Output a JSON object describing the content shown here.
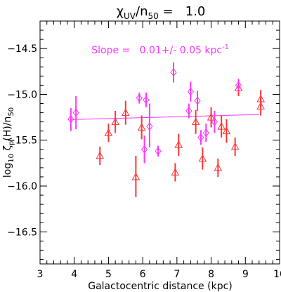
{
  "chart_data": {
    "type": "scatter",
    "title_main": "χ",
    "title_sub": "UV",
    "title_slash": "/n",
    "title_sub2": "50",
    "title_eq": " =   1.0",
    "xlabel": "Galactocentric distance (kpc)",
    "ylabel_pre": "log",
    "ylabel_sub1": "10",
    "ylabel_zeta": " ζ",
    "ylabel_sub2": "p",
    "ylabel_mid": "(H)/n",
    "ylabel_sub3": "50",
    "annotation": "Slope =   0.01+/- 0.05 kpc",
    "annotation_sup": "-1",
    "xlim": [
      3,
      10
    ],
    "ylim": [
      -16.85,
      -14.2
    ],
    "xticks": [
      3,
      4,
      5,
      6,
      7,
      8,
      9,
      10
    ],
    "xtick_labels": [
      "3",
      "4",
      "5",
      "6",
      "7",
      "8",
      "9",
      "10"
    ],
    "yticks": [
      -14.5,
      -15.0,
      -15.5,
      -16.0,
      -16.5
    ],
    "ytick_labels": [
      "−14.5",
      "−15.0",
      "−15.5",
      "−16.0",
      "−16.5"
    ],
    "colors": {
      "series_a": "#ff3333",
      "series_b": "#ff33ff",
      "fit": "#ff33ff",
      "axes": "#000000"
    },
    "fit_line": {
      "x": [
        3.9,
        9.4
      ],
      "y": [
        -15.275,
        -15.22
      ]
    },
    "series": [
      {
        "marker": "triangle",
        "color": "#ff3333",
        "points": [
          {
            "x": 4.75,
            "y": -15.67,
            "ylo": -15.77,
            "yhi": -15.57
          },
          {
            "x": 5.0,
            "y": -15.42,
            "ylo": -15.52,
            "yhi": -15.32
          },
          {
            "x": 5.2,
            "y": -15.3,
            "ylo": -15.42,
            "yhi": -15.18
          },
          {
            "x": 5.5,
            "y": -15.2,
            "ylo": -15.33,
            "yhi": -15.07
          },
          {
            "x": 5.8,
            "y": -15.9,
            "ylo": -16.12,
            "yhi": -15.67
          },
          {
            "x": 5.97,
            "y": -15.36,
            "ylo": -15.49,
            "yhi": -15.23
          },
          {
            "x": 6.95,
            "y": -15.85,
            "ylo": -15.95,
            "yhi": -15.75
          },
          {
            "x": 7.05,
            "y": -15.55,
            "ylo": -15.67,
            "yhi": -15.43
          },
          {
            "x": 7.55,
            "y": -15.3,
            "ylo": -15.43,
            "yhi": -15.17
          },
          {
            "x": 7.75,
            "y": -15.7,
            "ylo": -15.82,
            "yhi": -15.58
          },
          {
            "x": 8.0,
            "y": -15.25,
            "ylo": -15.36,
            "yhi": -15.14
          },
          {
            "x": 8.2,
            "y": -15.8,
            "ylo": -15.9,
            "yhi": -15.7
          },
          {
            "x": 8.3,
            "y": -15.35,
            "ylo": -15.47,
            "yhi": -15.23
          },
          {
            "x": 8.45,
            "y": -15.4,
            "ylo": -15.53,
            "yhi": -15.27
          },
          {
            "x": 8.7,
            "y": -15.57,
            "ylo": -15.67,
            "yhi": -15.47
          },
          {
            "x": 8.8,
            "y": -14.93,
            "ylo": -15.02,
            "yhi": -14.84
          },
          {
            "x": 9.45,
            "y": -15.05,
            "ylo": -15.15,
            "yhi": -14.95
          },
          {
            "x": 9.45,
            "y": -15.13,
            "ylo": -15.23,
            "yhi": -15.03
          }
        ]
      },
      {
        "marker": "diamond",
        "color": "#ff33ff",
        "points": [
          {
            "x": 3.9,
            "y": -15.27,
            "ylo": -15.4,
            "yhi": -15.15
          },
          {
            "x": 4.05,
            "y": -15.2,
            "ylo": -15.38,
            "yhi": -15.02
          },
          {
            "x": 5.9,
            "y": -15.04,
            "ylo": -15.1,
            "yhi": -14.98
          },
          {
            "x": 6.05,
            "y": -15.6,
            "ylo": -15.75,
            "yhi": -15.45
          },
          {
            "x": 6.1,
            "y": -15.06,
            "ylo": -15.14,
            "yhi": -14.98
          },
          {
            "x": 6.2,
            "y": -15.35,
            "ylo": -15.58,
            "yhi": -15.1
          },
          {
            "x": 6.45,
            "y": -15.62,
            "ylo": -15.68,
            "yhi": -15.56
          },
          {
            "x": 6.9,
            "y": -14.76,
            "ylo": -14.87,
            "yhi": -14.65
          },
          {
            "x": 7.35,
            "y": -15.18,
            "ylo": -15.26,
            "yhi": -15.1
          },
          {
            "x": 7.4,
            "y": -14.97,
            "ylo": -15.08,
            "yhi": -14.86
          },
          {
            "x": 7.6,
            "y": -15.07,
            "ylo": -15.18,
            "yhi": -14.96
          },
          {
            "x": 7.7,
            "y": -15.47,
            "ylo": -15.55,
            "yhi": -15.39
          },
          {
            "x": 7.85,
            "y": -15.42,
            "ylo": -15.52,
            "yhi": -15.32
          },
          {
            "x": 8.1,
            "y": -15.3,
            "ylo": -15.42,
            "yhi": -15.18
          },
          {
            "x": 8.8,
            "y": -14.9,
            "ylo": -14.97,
            "yhi": -14.83
          }
        ]
      }
    ]
  }
}
